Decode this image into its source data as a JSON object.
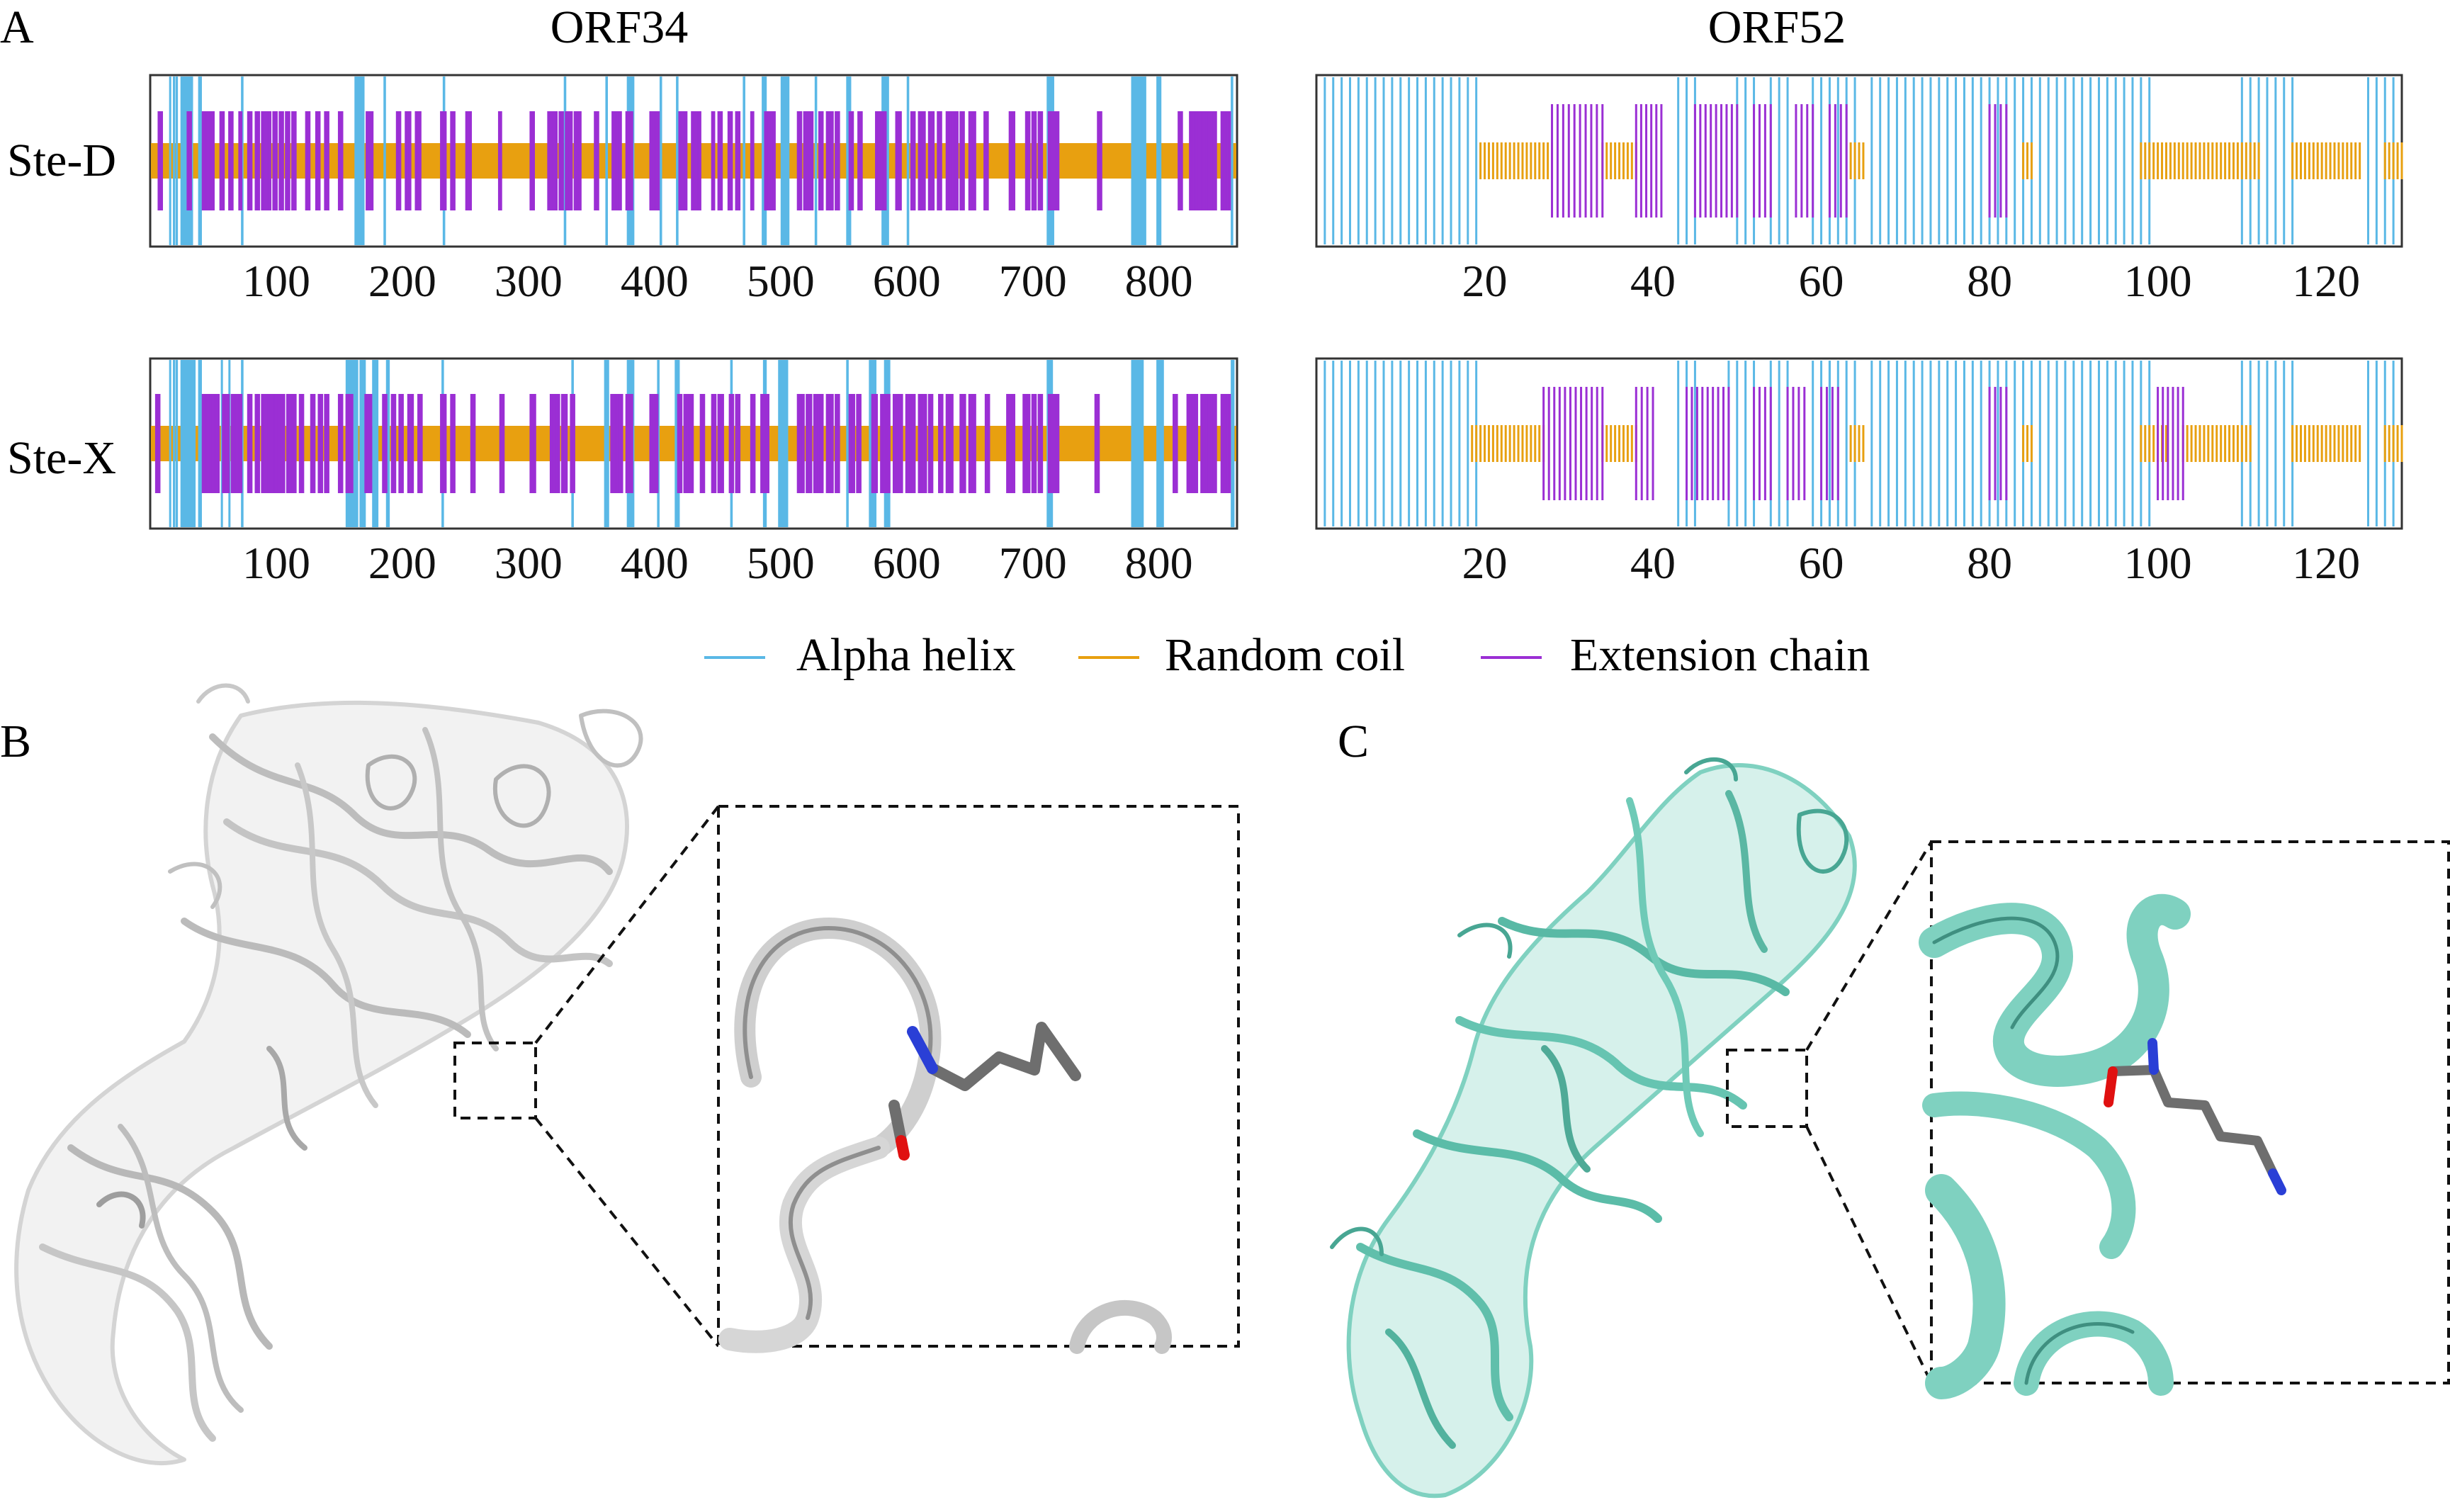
{
  "figure": {
    "panel_labels": {
      "a": "A",
      "b": "B",
      "c": "C"
    },
    "row_labels": [
      "Ste-D",
      "Ste-X"
    ],
    "colors": {
      "alpha_helix": "#5ab8e6",
      "random_coil": "#e8a010",
      "extension_chain": "#9b2fd4",
      "protein_b": "#e2e2e2",
      "protein_c": "#7fd1c0",
      "side_chain": "#6e6e6e",
      "nitrogen": "#2a3fd6",
      "oxygen": "#e01010"
    }
  },
  "chart_data": [
    {
      "type": "secondary-structure track",
      "title": "ORF34",
      "xlim": [
        0,
        862
      ],
      "xticks": [
        100,
        200,
        300,
        400,
        500,
        600,
        700,
        800
      ],
      "legend": [
        "Alpha helix",
        "Random coil",
        "Extension chain"
      ],
      "legend_position": "bottom-center",
      "rows": [
        {
          "name": "Ste-D",
          "alpha_helix": [
            [
              15,
              16
            ],
            [
              18,
              19
            ],
            [
              20,
              22
            ],
            [
              24,
              34
            ],
            [
              38,
              41
            ],
            [
              72,
              74
            ],
            [
              162,
              170
            ],
            [
              185,
              187
            ],
            [
              232,
              234
            ],
            [
              328,
              330
            ],
            [
              361,
              363
            ],
            [
              378,
              384
            ],
            [
              404,
              406
            ],
            [
              417,
              419
            ],
            [
              470,
              472
            ],
            [
              485,
              489
            ],
            [
              500,
              507
            ],
            [
              527,
              529
            ],
            [
              552,
              556
            ],
            [
              580,
              586
            ],
            [
              600,
              602
            ],
            [
              711,
              717
            ],
            [
              778,
              790
            ],
            [
              798,
              802
            ],
            [
              857,
              859
            ]
          ],
          "extension_chain": [
            [
              7,
              9
            ],
            [
              30,
              32
            ],
            [
              42,
              50
            ],
            [
              56,
              58
            ],
            [
              63,
              65
            ],
            [
              71,
              72
            ],
            [
              78,
              80
            ],
            [
              84,
              86
            ],
            [
              89,
              91
            ],
            [
              93,
              95
            ],
            [
              98,
              100
            ],
            [
              103,
              105
            ],
            [
              108,
              110
            ],
            [
              113,
              115
            ],
            [
              124,
              126
            ],
            [
              132,
              134
            ],
            [
              139,
              141
            ],
            [
              150,
              152
            ],
            [
              172,
              176
            ],
            [
              196,
              198
            ],
            [
              203,
              206
            ],
            [
              211,
              214
            ],
            [
              231,
              234
            ],
            [
              239,
              241
            ],
            [
              251,
              254
            ],
            [
              277,
              278
            ],
            [
              302,
              304
            ],
            [
              316,
              318
            ],
            [
              320,
              322
            ],
            [
              325,
              327
            ],
            [
              330,
              334
            ],
            [
              337,
              341
            ],
            [
              353,
              355
            ],
            [
              367,
              373
            ],
            [
              378,
              382
            ],
            [
              397,
              403
            ],
            [
              420,
              425
            ],
            [
              430,
              432
            ],
            [
              434,
              436
            ],
            [
              446,
              447
            ],
            [
              451,
              453
            ],
            [
              459,
              461
            ],
            [
              465,
              467
            ],
            [
              477,
              478
            ],
            [
              488,
              495
            ],
            [
              514,
              516
            ],
            [
              519,
              521
            ],
            [
              523,
              525
            ],
            [
              531,
              533
            ],
            [
              537,
              541
            ],
            [
              544,
              546
            ],
            [
              555,
              557
            ],
            [
              562,
              564
            ],
            [
              576,
              583
            ],
            [
              592,
              595
            ],
            [
              604,
              606
            ],
            [
              610,
              614
            ],
            [
              618,
              621
            ],
            [
              625,
              627
            ],
            [
              632,
              635
            ],
            [
              637,
              640
            ],
            [
              643,
              645
            ],
            [
              650,
              654
            ],
            [
              662,
              664
            ],
            [
              682,
              685
            ],
            [
              695,
              697
            ],
            [
              700,
              702
            ],
            [
              705,
              707
            ],
            [
              713,
              716
            ],
            [
              718,
              720
            ],
            [
              752,
              754
            ],
            [
              816,
              818
            ],
            [
              825,
              830
            ],
            [
              832,
              840
            ],
            [
              842,
              845
            ],
            [
              850,
              856
            ]
          ]
        },
        {
          "name": "Ste-X",
          "alpha_helix": [
            [
              15,
              16
            ],
            [
              18,
              19
            ],
            [
              20,
              22
            ],
            [
              24,
              36
            ],
            [
              38,
              41
            ],
            [
              56,
              57
            ],
            [
              62,
              63
            ],
            [
              72,
              74
            ],
            [
              155,
              165
            ],
            [
              166,
              171
            ],
            [
              176,
              181
            ],
            [
              187,
              190
            ],
            [
              231,
              233
            ],
            [
              334,
              336
            ],
            [
              360,
              364
            ],
            [
              378,
              384
            ],
            [
              402,
              404
            ],
            [
              416,
              420
            ],
            [
              460,
              462
            ],
            [
              486,
              489
            ],
            [
              498,
              506
            ],
            [
              552,
              554
            ],
            [
              570,
              576
            ],
            [
              582,
              587
            ],
            [
              711,
              716
            ],
            [
              778,
              788
            ],
            [
              798,
              804
            ],
            [
              857,
              860
            ]
          ],
          "extension_chain": [
            [
              5,
              7
            ],
            [
              42,
              48
            ],
            [
              50,
              54
            ],
            [
              58,
              62
            ],
            [
              65,
              67
            ],
            [
              68,
              72
            ],
            [
              78,
              80
            ],
            [
              84,
              86
            ],
            [
              89,
              91
            ],
            [
              93,
              97
            ],
            [
              99,
              102
            ],
            [
              104,
              106
            ],
            [
              109,
              111
            ],
            [
              113,
              115
            ],
            [
              119,
              121
            ],
            [
              128,
              130
            ],
            [
              134,
              136
            ],
            [
              139,
              141
            ],
            [
              150,
              152
            ],
            [
              156,
              160
            ],
            [
              171,
              175
            ],
            [
              185,
              187
            ],
            [
              192,
              194
            ],
            [
              198,
              200
            ],
            [
              205,
              208
            ],
            [
              213,
              215
            ],
            [
              231,
              234
            ],
            [
              239,
              241
            ],
            [
              255,
              257
            ],
            [
              278,
              280
            ],
            [
              302,
              305
            ],
            [
              318,
              320
            ],
            [
              321,
              324
            ],
            [
              327,
              330
            ],
            [
              334,
              336
            ],
            [
              366,
              374
            ],
            [
              378,
              382
            ],
            [
              397,
              402
            ],
            [
              419,
              421
            ],
            [
              424,
              426
            ],
            [
              428,
              430
            ],
            [
              437,
              439
            ],
            [
              446,
              448
            ],
            [
              451,
              454
            ],
            [
              460,
              462
            ],
            [
              465,
              467
            ],
            [
              477,
              479
            ],
            [
              485,
              490
            ],
            [
              514,
              518
            ],
            [
              521,
              524
            ],
            [
              527,
              530
            ],
            [
              531,
              533
            ],
            [
              537,
              541
            ],
            [
              544,
              546
            ],
            [
              555,
              558
            ],
            [
              561,
              563
            ],
            [
              573,
              576
            ],
            [
              580,
              586
            ],
            [
              590,
              596
            ],
            [
              600,
              606
            ],
            [
              610,
              615
            ],
            [
              618,
              620
            ],
            [
              626,
              628
            ],
            [
              632,
              636
            ],
            [
              643,
              646
            ],
            [
              650,
              654
            ],
            [
              663,
              665
            ],
            [
              680,
              685
            ],
            [
              693,
              697
            ],
            [
              700,
              702
            ],
            [
              705,
              707
            ],
            [
              713,
              716
            ],
            [
              718,
              720
            ],
            [
              750,
              752
            ],
            [
              812,
              814
            ],
            [
              823,
              830
            ],
            [
              834,
              840
            ],
            [
              842,
              845
            ],
            [
              850,
              856
            ]
          ]
        }
      ]
    },
    {
      "type": "secondary-structure track",
      "title": "ORF52",
      "xlim": [
        0,
        129
      ],
      "xticks": [
        20,
        40,
        60,
        80,
        100,
        120
      ],
      "legend": [
        "Alpha helix",
        "Random coil",
        "Extension chain"
      ],
      "legend_position": "bottom-center",
      "rows": [
        {
          "name": "Ste-D",
          "alpha_helix": [
            [
              1,
              19
            ],
            [
              43,
              45
            ],
            [
              50,
              52
            ],
            [
              54,
              56
            ],
            [
              59,
              61
            ],
            [
              62,
              64
            ],
            [
              66,
              84
            ],
            [
              85,
              99
            ],
            [
              110,
              116
            ],
            [
              125,
              128
            ]
          ],
          "random_coil": [
            [
              19.5,
              28
            ],
            [
              34,
              38
            ],
            [
              63.5,
              65
            ],
            [
              84,
              85
            ],
            [
              98,
              112
            ],
            [
              116,
              124
            ],
            [
              127,
              129
            ]
          ],
          "extension_chain": [
            [
              28,
              34
            ],
            [
              38,
              41
            ],
            [
              45,
              50
            ],
            [
              52,
              54
            ],
            [
              57,
              59
            ],
            [
              61,
              63
            ],
            [
              80,
              82
            ]
          ]
        },
        {
          "name": "Ste-X",
          "alpha_helix": [
            [
              1,
              19
            ],
            [
              43,
              45
            ],
            [
              49,
              52
            ],
            [
              54,
              56
            ],
            [
              59,
              61
            ],
            [
              61,
              64
            ],
            [
              66,
              84
            ],
            [
              85,
              99
            ],
            [
              110,
              116
            ],
            [
              125,
              128
            ]
          ],
          "random_coil": [
            [
              18.5,
              27
            ],
            [
              34,
              38
            ],
            [
              63.5,
              65
            ],
            [
              84,
              85
            ],
            [
              98,
              101
            ],
            [
              103,
              111
            ],
            [
              116,
              124
            ],
            [
              127,
              129
            ]
          ],
          "extension_chain": [
            [
              27,
              34
            ],
            [
              38,
              40
            ],
            [
              44,
              49
            ],
            [
              52,
              54
            ],
            [
              56,
              58
            ],
            [
              60,
              62
            ],
            [
              80,
              82
            ],
            [
              100,
              103
            ]
          ]
        }
      ]
    }
  ]
}
